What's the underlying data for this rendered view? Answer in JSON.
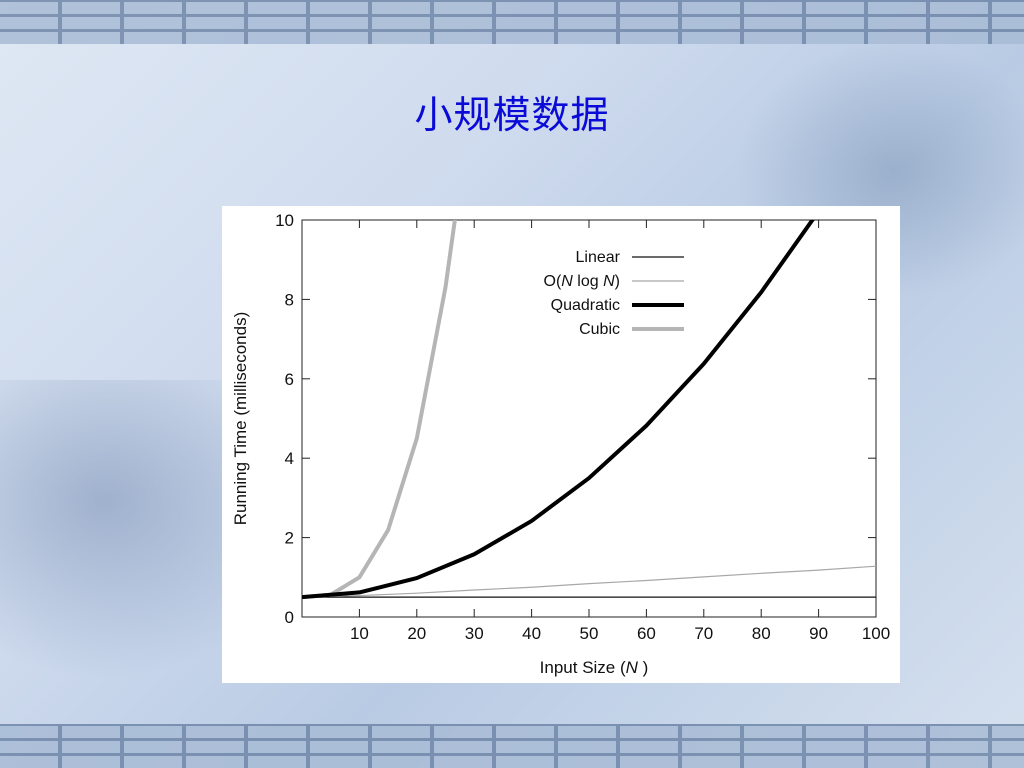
{
  "slide": {
    "title": "小规模数据"
  },
  "chart_data": {
    "type": "line",
    "x_range": [
      0,
      100
    ],
    "xlim": [
      0,
      100
    ],
    "ylim": [
      0,
      10
    ],
    "xticks": [
      10,
      20,
      30,
      40,
      50,
      60,
      70,
      80,
      90,
      100
    ],
    "yticks": [
      0,
      2,
      4,
      6,
      8,
      10
    ],
    "xlabel_prefix": "Input Size (",
    "xlabel_var": "N",
    "xlabel_suffix": " )",
    "ylabel": "Running Time (milliseconds)",
    "legend_position": "top-right",
    "grid": false,
    "series": [
      {
        "name": "Linear",
        "formula": "0.5",
        "color": "#111111",
        "width": 1.2,
        "x": [
          0,
          25,
          50,
          75,
          100
        ],
        "y": [
          0.5,
          0.5,
          0.5,
          0.5,
          0.5
        ]
      },
      {
        "name": "O(N log N)",
        "name_parts": [
          "O(",
          "N",
          " log ",
          "N",
          ")"
        ],
        "formula": "0.5 + 0.0012 * N * log2(N)",
        "color": "#a8a8a8",
        "width": 1.2,
        "x": [
          0,
          10,
          20,
          30,
          40,
          50,
          60,
          70,
          80,
          90,
          100
        ],
        "y": [
          0.5,
          0.54,
          0.6,
          0.68,
          0.75,
          0.84,
          0.92,
          1.01,
          1.1,
          1.18,
          1.28
        ]
      },
      {
        "name": "Quadratic",
        "formula": "0.5 + 0.0012 * N^2",
        "color": "#000000",
        "width": 4,
        "x": [
          0,
          10,
          20,
          30,
          40,
          50,
          60,
          70,
          80,
          90,
          93
        ],
        "y": [
          0.5,
          0.62,
          0.98,
          1.58,
          2.42,
          3.5,
          4.82,
          6.38,
          8.18,
          10.22,
          10.88
        ]
      },
      {
        "name": "Cubic",
        "formula": "0.5 + 0.0005 * N^3",
        "color": "#b5b5b5",
        "width": 4,
        "x": [
          0,
          5,
          10,
          15,
          20,
          25,
          27.5
        ],
        "y": [
          0.5,
          0.56,
          1.0,
          2.19,
          4.5,
          8.31,
          10.9
        ]
      }
    ]
  }
}
